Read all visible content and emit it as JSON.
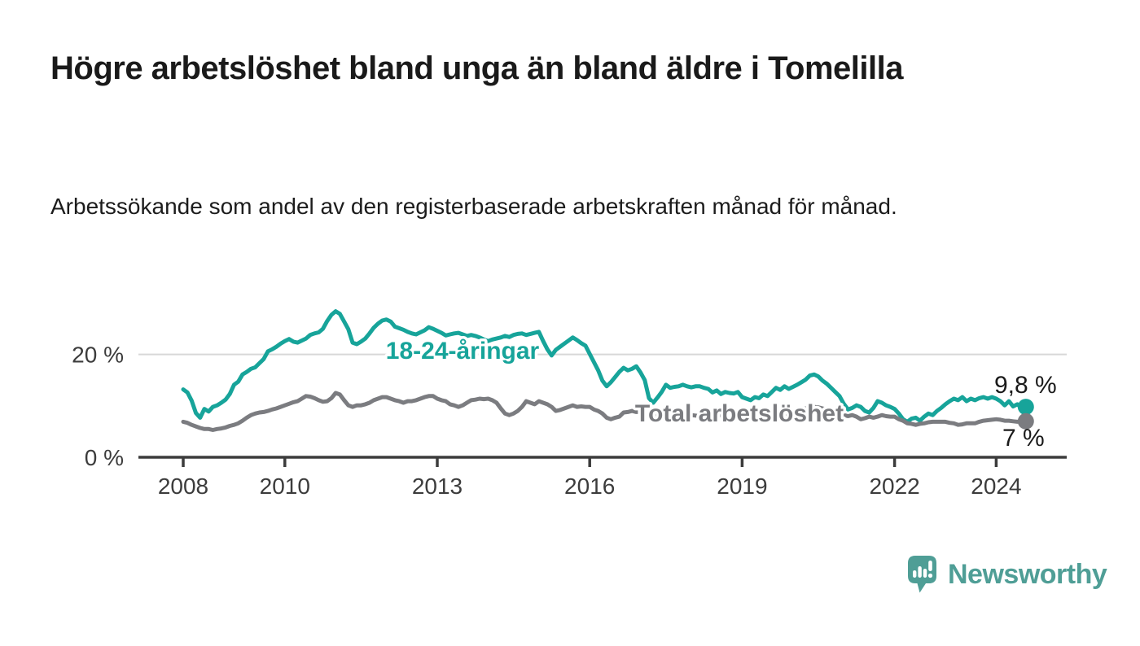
{
  "header": {
    "title": "Högre arbetslöshet bland unga än bland äldre i Tomelilla",
    "subtitle": "Arbetssökande som andel av den registerbaserade arbetskraften månad för månad."
  },
  "branding": {
    "name": "Newsworthy",
    "logo_icon": "speech-bubble-bar-chart",
    "color": "#4f9e96"
  },
  "colors": {
    "young_series": "#17a49a",
    "total_series": "#7b7c80",
    "axis": "#3c3c3c",
    "gridline": "#d8d8d8",
    "text": "#1a1a1a"
  },
  "chart_data": {
    "type": "line",
    "title": "Högre arbetslöshet bland unga än bland äldre i Tomelilla",
    "subtitle": "Arbetssökande som andel av den registerbaserade arbetskraften månad för månad.",
    "unit": "%",
    "frequency": "monthly",
    "x_start": "2008-01",
    "x_end": "2024-08",
    "grid": "horizontal-only",
    "legend_position": "inline-labels",
    "ylim": [
      0,
      30
    ],
    "y_ticks": [
      {
        "value": 0,
        "label": "0 %"
      },
      {
        "value": 20,
        "label": "20 %"
      }
    ],
    "x_ticks": [
      {
        "year": 2008,
        "label": "2008"
      },
      {
        "year": 2010,
        "label": "2010"
      },
      {
        "year": 2013,
        "label": "2013"
      },
      {
        "year": 2016,
        "label": "2016"
      },
      {
        "year": 2019,
        "label": "2019"
      },
      {
        "year": 2022,
        "label": "2022"
      },
      {
        "year": 2024,
        "label": "2024"
      }
    ],
    "series": [
      {
        "name": "18-24-åringar",
        "color": "#17a49a",
        "end_label": "9,8 %",
        "end_value": 9.8,
        "values": [
          13.2,
          12.6,
          11.0,
          8.6,
          7.7,
          9.4,
          8.9,
          9.8,
          10.1,
          10.6,
          11.2,
          12.3,
          14.1,
          14.7,
          16.1,
          16.6,
          17.2,
          17.5,
          18.3,
          19.1,
          20.6,
          21.0,
          21.5,
          22.1,
          22.6,
          23.0,
          22.5,
          22.3,
          22.7,
          23.1,
          23.8,
          24.1,
          24.3,
          25.0,
          26.5,
          27.7,
          28.4,
          27.9,
          26.4,
          24.9,
          22.3,
          22.0,
          22.5,
          23.1,
          24.1,
          25.2,
          26.0,
          26.6,
          26.8,
          26.4,
          25.4,
          25.1,
          24.8,
          24.4,
          24.1,
          23.9,
          24.3,
          24.7,
          25.3,
          25.0,
          24.6,
          24.2,
          23.7,
          23.9,
          24.1,
          24.2,
          23.9,
          23.6,
          23.8,
          23.6,
          23.3,
          22.9,
          22.6,
          22.9,
          23.1,
          23.3,
          23.6,
          23.4,
          23.8,
          24.0,
          24.1,
          23.8,
          24.0,
          24.2,
          24.4,
          22.6,
          21.0,
          19.8,
          20.9,
          21.5,
          22.1,
          22.7,
          23.3,
          22.8,
          22.2,
          21.7,
          20.1,
          18.5,
          16.9,
          14.9,
          13.8,
          14.6,
          15.6,
          16.6,
          17.4,
          16.9,
          17.2,
          17.7,
          16.5,
          15.0,
          11.5,
          10.6,
          11.6,
          12.7,
          14.1,
          13.5,
          13.7,
          13.8,
          14.1,
          13.8,
          13.6,
          13.8,
          13.8,
          13.5,
          13.3,
          12.6,
          13.0,
          12.3,
          12.7,
          12.5,
          12.4,
          12.7,
          11.7,
          11.4,
          11.1,
          11.7,
          11.5,
          12.2,
          11.9,
          12.7,
          13.5,
          13.1,
          13.8,
          13.3,
          13.7,
          14.1,
          14.6,
          15.1,
          15.9,
          16.1,
          15.7,
          14.9,
          14.3,
          13.5,
          12.7,
          11.9,
          10.4,
          9.3,
          9.6,
          10.1,
          9.8,
          9.0,
          8.7,
          9.6,
          10.9,
          10.6,
          10.1,
          9.8,
          9.4,
          8.5,
          7.4,
          6.9,
          7.5,
          7.7,
          7.1,
          7.9,
          8.5,
          8.2,
          9.0,
          9.6,
          10.3,
          10.9,
          11.4,
          11.1,
          11.7,
          10.9,
          11.4,
          11.1,
          11.5,
          11.7,
          11.4,
          11.7,
          11.4,
          10.9,
          10.1,
          10.9,
          9.9,
          10.3,
          9.6,
          9.8
        ]
      },
      {
        "name": "Total arbetslöshet",
        "color": "#7b7c80",
        "end_label": "7 %",
        "end_value": 7.0,
        "values": [
          6.9,
          6.7,
          6.3,
          6.0,
          5.7,
          5.5,
          5.5,
          5.3,
          5.5,
          5.6,
          5.8,
          6.1,
          6.3,
          6.6,
          7.1,
          7.7,
          8.2,
          8.5,
          8.7,
          8.8,
          9.0,
          9.3,
          9.5,
          9.8,
          10.1,
          10.4,
          10.7,
          10.9,
          11.4,
          11.9,
          11.8,
          11.5,
          11.1,
          10.8,
          10.9,
          11.5,
          12.5,
          12.2,
          11.1,
          10.1,
          9.8,
          10.1,
          10.1,
          10.3,
          10.6,
          11.1,
          11.4,
          11.7,
          11.7,
          11.4,
          11.1,
          10.9,
          10.6,
          10.9,
          10.9,
          11.1,
          11.4,
          11.7,
          11.9,
          11.9,
          11.4,
          11.1,
          10.9,
          10.3,
          10.1,
          9.8,
          10.1,
          10.6,
          11.1,
          11.2,
          11.4,
          11.3,
          11.4,
          11.1,
          10.6,
          9.5,
          8.5,
          8.2,
          8.5,
          9.0,
          9.8,
          10.9,
          10.6,
          10.3,
          10.9,
          10.6,
          10.3,
          9.8,
          9.0,
          9.2,
          9.5,
          9.8,
          10.1,
          9.8,
          9.9,
          9.8,
          9.8,
          9.3,
          9.0,
          8.5,
          7.7,
          7.4,
          7.7,
          7.9,
          8.7,
          8.8,
          9.0,
          8.8,
          8.8,
          8.7,
          8.5,
          8.3,
          8.2,
          8.2,
          8.3,
          8.5,
          8.5,
          8.4,
          8.3,
          8.2,
          8.2,
          8.1,
          8.0,
          7.9,
          7.9,
          8.0,
          8.1,
          8.2,
          8.1,
          8.0,
          7.9,
          7.9,
          7.9,
          7.8,
          7.7,
          7.7,
          7.8,
          7.9,
          8.0,
          8.1,
          8.2,
          8.3,
          8.4,
          8.5,
          8.7,
          8.9,
          9.2,
          9.5,
          9.7,
          9.8,
          9.7,
          9.5,
          9.3,
          9.0,
          8.7,
          8.4,
          8.2,
          8.0,
          8.2,
          7.9,
          7.4,
          7.6,
          7.9,
          7.7,
          7.9,
          8.2,
          8.0,
          7.9,
          7.9,
          7.4,
          7.1,
          6.6,
          6.5,
          6.3,
          6.5,
          6.6,
          6.8,
          6.9,
          6.9,
          6.9,
          6.9,
          6.7,
          6.6,
          6.3,
          6.4,
          6.6,
          6.6,
          6.6,
          6.9,
          7.1,
          7.2,
          7.3,
          7.4,
          7.3,
          7.1,
          7.1,
          7.0,
          6.9,
          7.0,
          7.0
        ]
      }
    ]
  }
}
